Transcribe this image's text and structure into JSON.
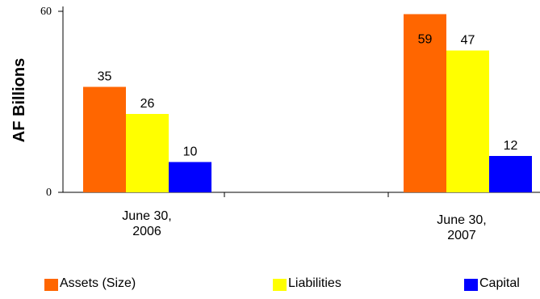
{
  "chart_data": {
    "type": "bar",
    "title": "",
    "xlabel": "",
    "ylabel": "AF Billions",
    "ylim": [
      0,
      60
    ],
    "ytick_labels": [
      "0",
      "60"
    ],
    "categories": [
      "June 30, 2006",
      "June 30, 2007"
    ],
    "category_lines": [
      [
        "June 30,",
        "2006"
      ],
      [
        "June 30,",
        "2007"
      ]
    ],
    "series": [
      {
        "name": "Assets (Size)",
        "color": "#FF6600",
        "values": [
          35,
          59
        ],
        "value_labels": [
          "35",
          "59"
        ]
      },
      {
        "name": "Liabilities",
        "color": "#FFFF00",
        "values": [
          26,
          47
        ],
        "value_labels": [
          "26",
          "47"
        ]
      },
      {
        "name": "Capital",
        "color": "#0000FF",
        "values": [
          10,
          12
        ],
        "value_labels": [
          "10",
          "12"
        ]
      }
    ],
    "grid": false,
    "legend_position": "bottom"
  },
  "legend": [
    {
      "label": "Assets (Size)",
      "color": "#FF6600"
    },
    {
      "label": "Liabilities",
      "color": "#FFFF00"
    },
    {
      "label": "Capital",
      "color": "#0000FF"
    }
  ]
}
